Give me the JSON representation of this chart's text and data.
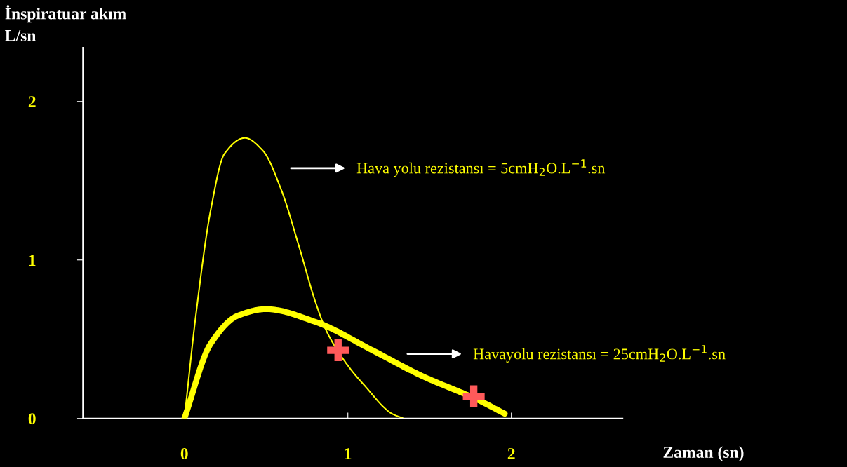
{
  "chart_data": {
    "type": "line",
    "xlabel": "Zaman (sn)",
    "ylabel": "İnspiratuar akım\nL/sn",
    "xlim": [
      -0.62,
      2.68
    ],
    "ylim": [
      0,
      2.34
    ],
    "xticks": [
      0,
      1,
      2
    ],
    "yticks": [
      0,
      1,
      2
    ],
    "grid": false,
    "legend": false,
    "series": [
      {
        "color": "#ffff00",
        "x": [
          0,
          0.07,
          0.16,
          0.245,
          0.37,
          0.48,
          0.59,
          0.7,
          0.8,
          0.87,
          1.01,
          1.1,
          1.27,
          1.34
        ],
        "values": [
          0,
          0.65,
          1.31,
          1.67,
          1.77,
          1.69,
          1.45,
          1.09,
          0.74,
          0.55,
          0.32,
          0.21,
          0.03,
          0
        ]
      },
      {
        "color": "#ffff00",
        "x": [
          0,
          0.16,
          0.33,
          0.5,
          0.8,
          1.15,
          1.45,
          1.79,
          1.96
        ],
        "values": [
          0,
          0.47,
          0.65,
          0.69,
          0.61,
          0.43,
          0.27,
          0.12,
          0.03
        ]
      },
      {
        "type": "scatter",
        "color": "#ff5a5a",
        "marker": "cross",
        "x": [
          0.94,
          1.77
        ],
        "values": [
          0.43,
          0.14
        ]
      }
    ],
    "annotations": [
      "Hava yolu rezistansı = 5cmH$_{2}$O.L$^{−1}$.sn",
      "Havayolu rezistansı = 25cmH$_{2}$O.L$^{−1}$.sn"
    ]
  }
}
